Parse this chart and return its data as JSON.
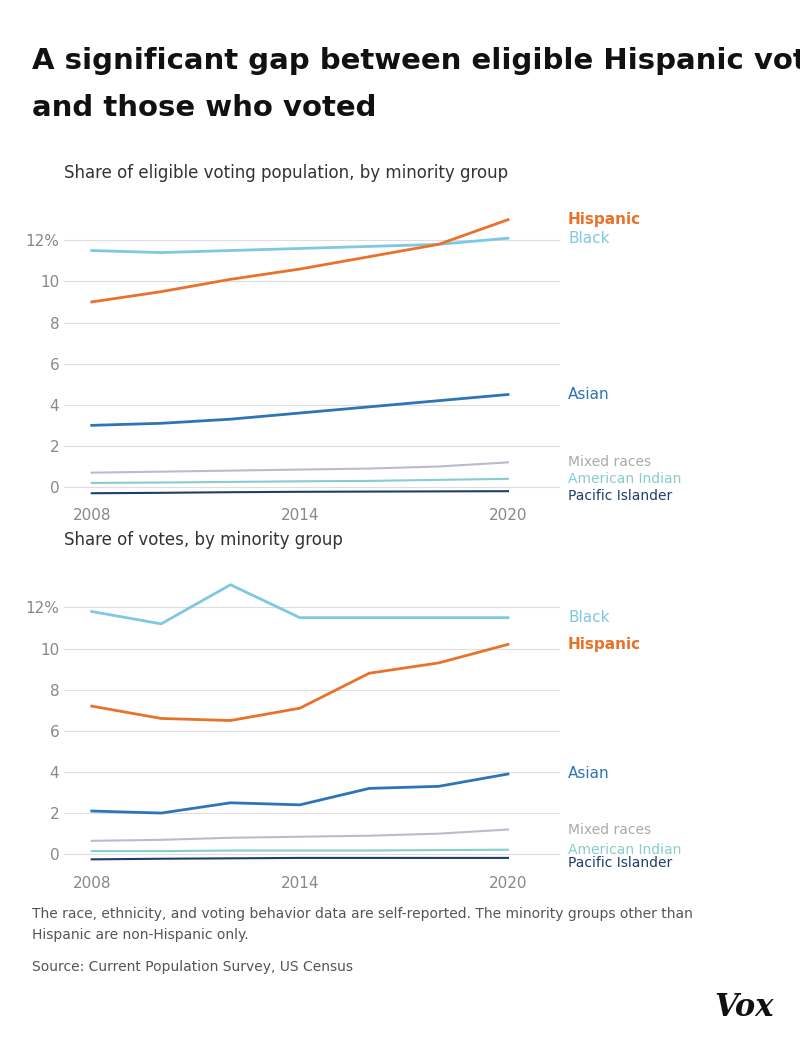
{
  "title_line1": "A significant gap between eligible Hispanic voters",
  "title_line2": "and those who voted",
  "subtitle1": "Share of eligible voting population, by minority group",
  "subtitle2": "Share of votes, by minority group",
  "footnote": "The race, ethnicity, and voting behavior data are self-reported. The minority groups other than\nHispanic are non-Hispanic only.",
  "source": "Source: Current Population Survey, US Census",
  "years": [
    2008,
    2010,
    2012,
    2014,
    2016,
    2018,
    2020
  ],
  "chart1": {
    "hispanic": [
      9.0,
      9.5,
      10.1,
      10.6,
      11.2,
      11.8,
      13.0
    ],
    "black": [
      11.5,
      11.4,
      11.5,
      11.6,
      11.7,
      11.8,
      12.1
    ],
    "asian": [
      3.0,
      3.1,
      3.3,
      3.6,
      3.9,
      4.2,
      4.5
    ],
    "mixed_races": [
      0.7,
      0.75,
      0.8,
      0.85,
      0.9,
      1.0,
      1.2
    ],
    "american_indian": [
      0.2,
      0.22,
      0.25,
      0.28,
      0.3,
      0.35,
      0.4
    ],
    "pacific_islander": [
      -0.3,
      -0.28,
      -0.25,
      -0.23,
      -0.22,
      -0.21,
      -0.2
    ]
  },
  "chart2": {
    "black": [
      11.8,
      11.2,
      13.1,
      11.5,
      11.5,
      11.5,
      11.5
    ],
    "hispanic": [
      7.2,
      6.6,
      6.5,
      7.1,
      8.8,
      9.3,
      10.2
    ],
    "asian": [
      2.1,
      2.0,
      2.5,
      2.4,
      3.2,
      3.3,
      3.9
    ],
    "mixed_races": [
      0.65,
      0.7,
      0.8,
      0.85,
      0.9,
      1.0,
      1.2
    ],
    "american_indian": [
      0.15,
      0.15,
      0.18,
      0.18,
      0.18,
      0.2,
      0.22
    ],
    "pacific_islander": [
      -0.25,
      -0.22,
      -0.2,
      -0.18,
      -0.18,
      -0.18,
      -0.18
    ]
  },
  "colors": {
    "hispanic": "#E8722A",
    "black": "#7EC8E3",
    "asian": "#2E75B6",
    "mixed_races": "#BBBBCC",
    "american_indian": "#88CCCC",
    "pacific_islander": "#1F3E6E"
  },
  "label_colors": {
    "hispanic": "#E8722A",
    "black": "#7EC8E3",
    "asian": "#2E75B6",
    "mixed_races": "#AAAAAA",
    "american_indian": "#88CCCC",
    "pacific_islander": "#1F3E6E"
  },
  "title_fontsize": 21,
  "subtitle_fontsize": 12,
  "label_fontsize": 11,
  "axis_fontsize": 11,
  "footnote_fontsize": 10,
  "background_color": "#FFFFFF",
  "grid_color": "#DDDDDD",
  "ylim1": [
    -0.8,
    14.5
  ],
  "ylim2": [
    -0.8,
    14.5
  ],
  "yticks": [
    0,
    2,
    4,
    6,
    8,
    10,
    12
  ],
  "xticks": [
    2008,
    2014,
    2020
  ]
}
